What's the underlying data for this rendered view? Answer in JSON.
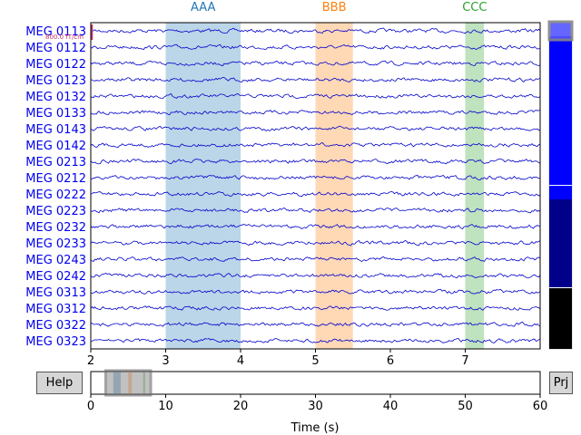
{
  "channels": [
    "MEG 0113",
    "MEG 0112",
    "MEG 0122",
    "MEG 0123",
    "MEG 0132",
    "MEG 0133",
    "MEG 0143",
    "MEG 0142",
    "MEG 0213",
    "MEG 0212",
    "MEG 0222",
    "MEG 0223",
    "MEG 0232",
    "MEG 0233",
    "MEG 0243",
    "MEG 0242",
    "MEG 0313",
    "MEG 0312",
    "MEG 0322",
    "MEG 0323"
  ],
  "annotations": [
    {
      "label": "AAA",
      "start": 3.0,
      "end": 4.0,
      "color": "#1f77b4"
    },
    {
      "label": "BBB",
      "start": 5.0,
      "end": 5.5,
      "color": "#ff7f0e"
    },
    {
      "label": "CCC",
      "start": 7.0,
      "end": 7.25,
      "color": "#2ca02c"
    }
  ],
  "time_window": {
    "start": 2.0,
    "end": 8.0
  },
  "main_xticks": [
    "2",
    "3",
    "4",
    "5",
    "6",
    "7"
  ],
  "overview": {
    "xticks": [
      "0",
      "10",
      "20",
      "30",
      "40",
      "50",
      "60"
    ],
    "xlabel": "Time (s)",
    "total": 60
  },
  "scalebar_label": "800.0 fT/cm",
  "buttons": {
    "help": "Help",
    "proj": "Prj"
  },
  "colors": {
    "trace": "#0000cc",
    "label": "#0000ee",
    "scalebar": "#cc3366"
  }
}
